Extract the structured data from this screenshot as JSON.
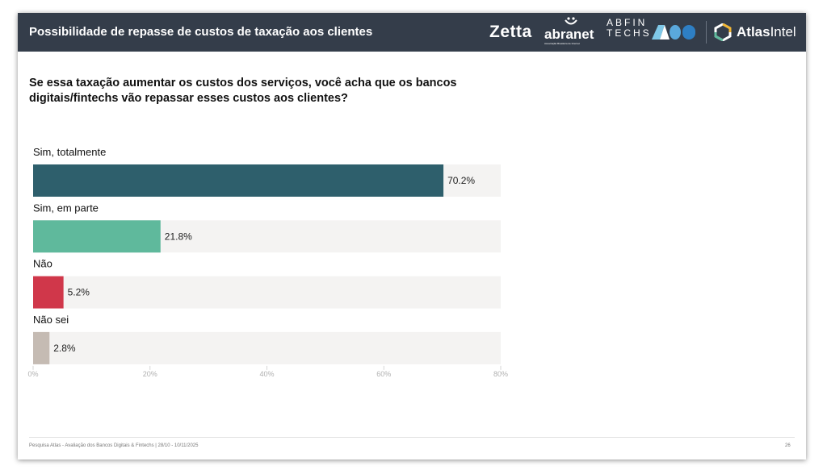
{
  "header": {
    "title": "Possibilidade de repasse de custos de taxação aos clientes",
    "logos": {
      "zetta": "Zetta",
      "abranet": "abranet",
      "abranet_sub": "Associação Brasileira de Internet",
      "abfin_line1": "ABFIN",
      "abfin_line2": "TECHS",
      "atlas_bold": "Atlas",
      "atlas_regular": "Intel"
    }
  },
  "question": "Se essa taxação aumentar os custos dos serviços, você acha que os bancos digitais/fintechs vão repassar esses custos aos clientes?",
  "chart_data": {
    "type": "bar",
    "orientation": "horizontal",
    "categories": [
      "Sim, totalmente",
      "Sim, em parte",
      "Não",
      "Não sei"
    ],
    "values": [
      70.2,
      21.8,
      5.2,
      2.8
    ],
    "data_labels": [
      "70.2%",
      "21.8%",
      "5.2%",
      "2.8%"
    ],
    "colors": [
      "#2e5f6c",
      "#5fb99c",
      "#d0374a",
      "#c5bbb3"
    ],
    "track_color": "#f4f3f2",
    "xlim": [
      0,
      80
    ],
    "x_ticks": [
      0,
      20,
      40,
      60,
      80
    ],
    "x_tick_labels": [
      "0%",
      "20%",
      "40%",
      "60%",
      "80%"
    ],
    "grid": false
  },
  "footer": {
    "source": "Pesquisa Atlas - Avaliação dos Bancos Digitais & Fintechs | 28/10 - 10/11/2025",
    "page": "26"
  }
}
